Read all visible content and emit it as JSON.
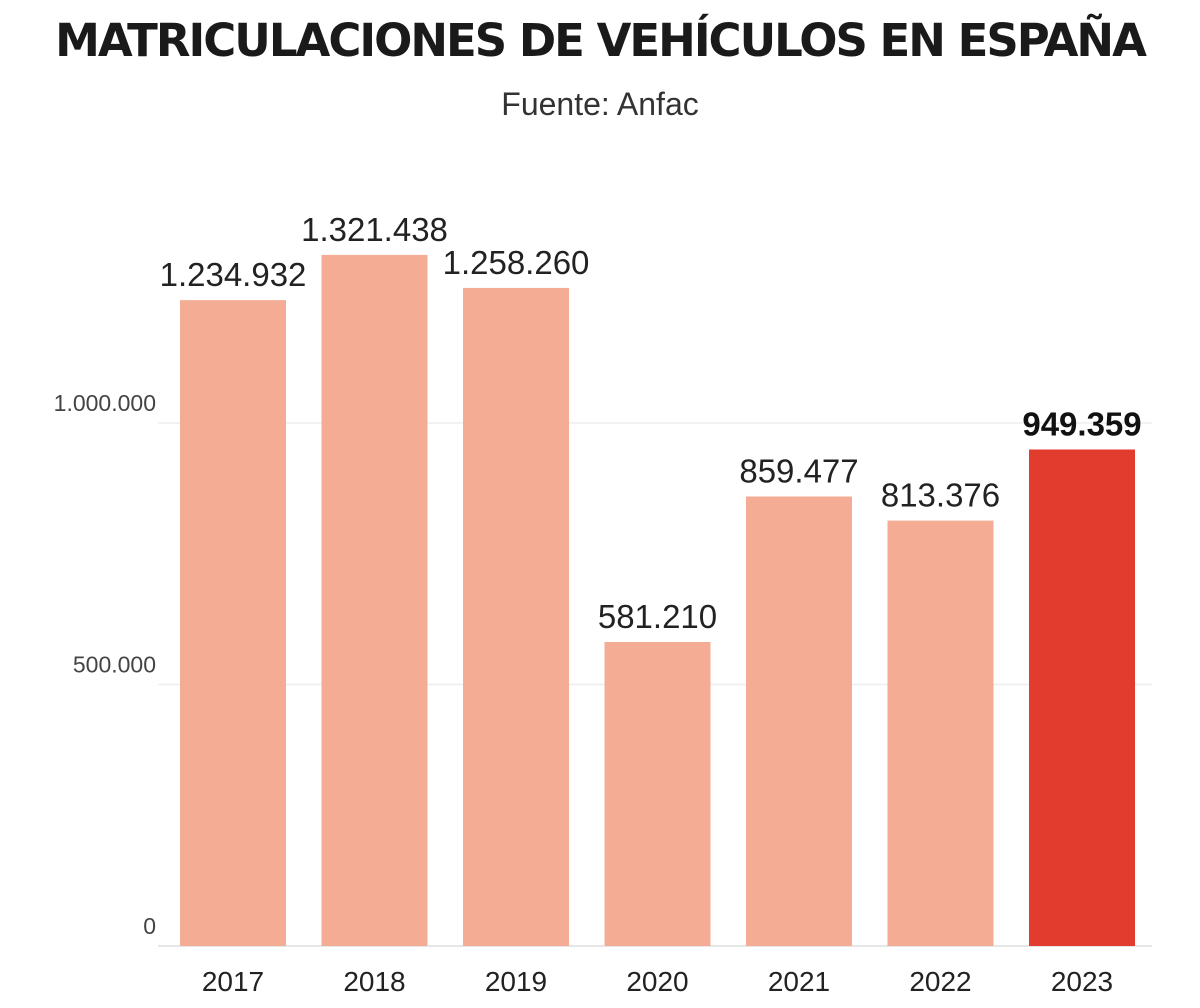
{
  "chart_data": {
    "type": "bar",
    "title": "MATRICULACIONES DE VEHÍCULOS EN ESPAÑA",
    "subtitle": "Fuente: Anfac",
    "xlabel": "",
    "ylabel": "",
    "categories": [
      "2017",
      "2018",
      "2019",
      "2020",
      "2021",
      "2022",
      "2023"
    ],
    "values": [
      1234932,
      1321438,
      1258260,
      581210,
      859477,
      813376,
      949359
    ],
    "value_labels": [
      "1.234.932",
      "1.321.438",
      "1.258.260",
      "581.210",
      "859.477",
      "813.376",
      "949.359"
    ],
    "highlight_index": 6,
    "ylim": [
      0,
      1321438
    ],
    "yticks": [
      0,
      500000,
      1000000
    ],
    "ytick_labels": [
      "0",
      "500.000",
      "1.000.000"
    ],
    "grid": true,
    "legend": "none",
    "colors": {
      "bar": "#F4AC95",
      "highlight_bar": "#E23C2E",
      "grid": "#EEEEEE",
      "baseline": "#DDDDDD"
    }
  }
}
